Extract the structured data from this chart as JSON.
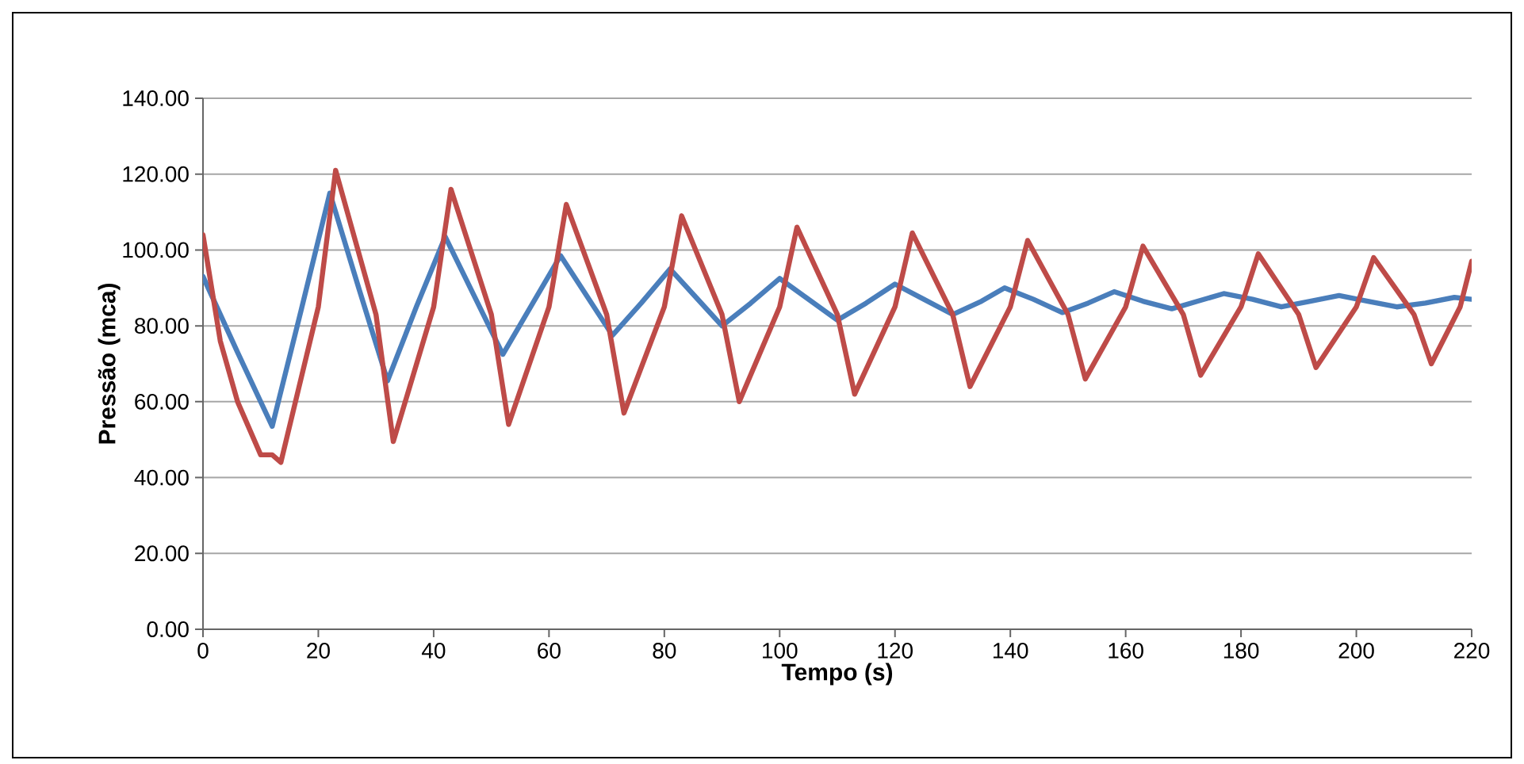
{
  "chart_data": {
    "type": "line",
    "xlabel": "Tempo (s)",
    "ylabel": "Pressão (mca)",
    "xlim": [
      0,
      220
    ],
    "xticks": [
      0,
      20,
      40,
      60,
      80,
      100,
      120,
      140,
      160,
      180,
      200,
      220
    ],
    "ylim": [
      0,
      140
    ],
    "yticks": [
      {
        "value": 0,
        "label": "0.00"
      },
      {
        "value": 20,
        "label": "20.00"
      },
      {
        "value": 40,
        "label": "40.00"
      },
      {
        "value": 60,
        "label": "60.00"
      },
      {
        "value": 80,
        "label": "80.00"
      },
      {
        "value": 100,
        "label": "100.00"
      },
      {
        "value": 120,
        "label": "120.00"
      },
      {
        "value": 140,
        "label": "140.00"
      }
    ],
    "grid": "y",
    "legend": false,
    "marker": "none",
    "line_style": "solid",
    "series": [
      {
        "color": "#4a7ebb",
        "x": [
          0,
          6,
          12,
          17,
          22,
          27,
          32,
          37,
          42,
          47,
          52,
          57,
          62,
          66.5,
          71,
          76,
          81,
          85.5,
          90,
          95,
          100,
          105,
          110,
          115,
          120,
          125,
          130,
          135,
          139,
          144,
          149,
          153.5,
          158,
          163,
          168,
          172.5,
          177,
          182,
          187,
          192,
          197,
          202,
          207,
          212,
          217,
          220
        ],
        "values": [
          93,
          73,
          53.5,
          84,
          115,
          90,
          65.5,
          85,
          103.5,
          88,
          72.5,
          85.5,
          98.5,
          88,
          77.5,
          86,
          95,
          87.5,
          80,
          86,
          92.5,
          87,
          81.5,
          86,
          91,
          87,
          83,
          86.5,
          90,
          87,
          83.5,
          86,
          89,
          86.5,
          84.5,
          86.5,
          88.5,
          87,
          85,
          86.5,
          88,
          86.5,
          85,
          86,
          87.5,
          87
        ]
      },
      {
        "color": "#be4b48",
        "x": [
          0,
          3,
          6,
          10,
          12,
          13.5,
          20,
          23,
          30,
          33,
          40,
          43,
          50,
          53,
          60,
          63,
          70,
          73,
          80,
          83,
          90,
          93,
          100,
          103,
          110,
          113,
          120,
          123,
          130,
          133,
          140,
          143,
          150,
          153,
          160,
          163,
          170,
          173,
          180,
          183,
          190,
          193,
          200,
          203,
          210,
          213,
          218,
          220
        ],
        "values": [
          104,
          76,
          60,
          46,
          46,
          44,
          85,
          121,
          83,
          49.5,
          85,
          116,
          83,
          54,
          85,
          112,
          83,
          57,
          85,
          109,
          83,
          60,
          85,
          106,
          83,
          62,
          85,
          104.5,
          83,
          64,
          85,
          102.5,
          83,
          66,
          85,
          101,
          83,
          67,
          85,
          99,
          83,
          69,
          85,
          98,
          83,
          70,
          85,
          97
        ]
      }
    ]
  }
}
